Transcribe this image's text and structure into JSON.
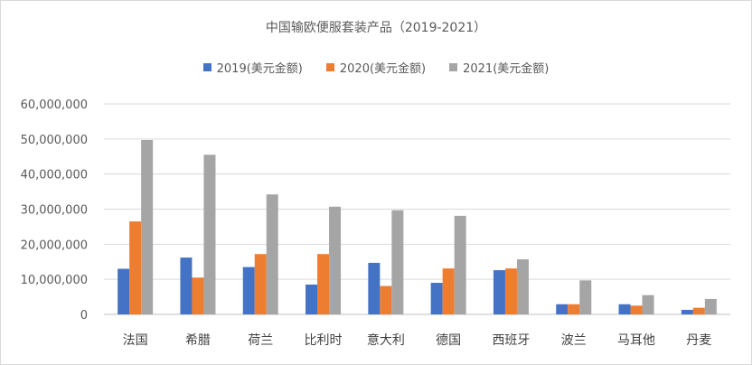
{
  "chart_data": {
    "type": "bar",
    "title": "中国输欧便服套装产品（2019-2021）",
    "xlabel": "",
    "ylabel": "",
    "ylim": [
      0,
      60000000
    ],
    "yticks": [
      0,
      10000000,
      20000000,
      30000000,
      40000000,
      50000000,
      60000000
    ],
    "ytick_labels": [
      "0",
      "10,000,000",
      "20,000,000",
      "30,000,000",
      "40,000,000",
      "50,000,000",
      "60,000,000"
    ],
    "grid": true,
    "legend_position": "top",
    "categories": [
      "法国",
      "希腊",
      "荷兰",
      "比利时",
      "意大利",
      "德国",
      "西班牙",
      "波兰",
      "马耳他",
      "丹麦"
    ],
    "series": [
      {
        "name": "2019(美元金额)",
        "color": "#4472C4",
        "values": [
          13000000,
          16200000,
          13500000,
          8500000,
          14700000,
          9000000,
          12600000,
          2900000,
          2900000,
          1300000
        ]
      },
      {
        "name": "2020(美元金额)",
        "color": "#ED7D31",
        "values": [
          26500000,
          10500000,
          17200000,
          17200000,
          8100000,
          13100000,
          13100000,
          2900000,
          2500000,
          1900000
        ]
      },
      {
        "name": "2021(美元金额)",
        "color": "#A5A5A5",
        "values": [
          49700000,
          45500000,
          34200000,
          30700000,
          29700000,
          28100000,
          15700000,
          9700000,
          5500000,
          4400000
        ]
      }
    ]
  }
}
